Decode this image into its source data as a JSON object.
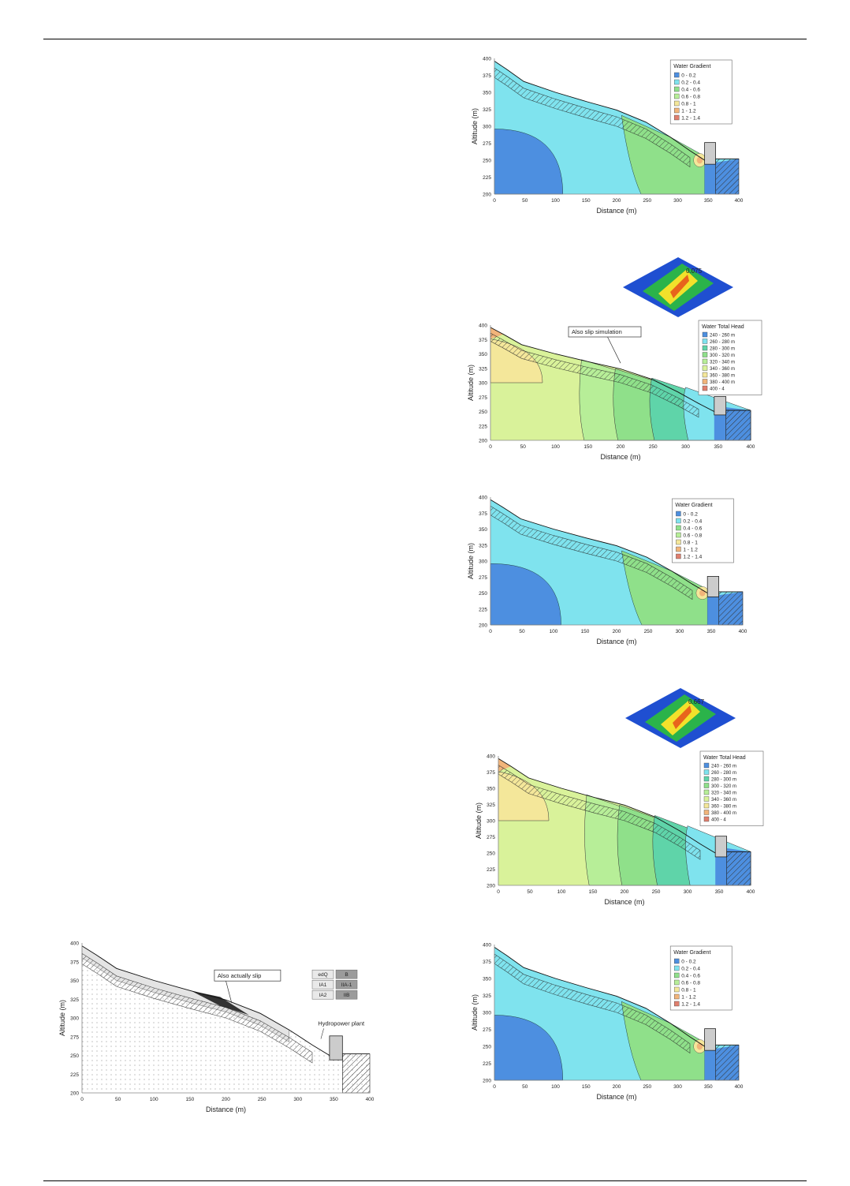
{
  "page": {
    "header_rule": true,
    "footer_rule": true
  },
  "colors": {
    "band_blue": "#4d8fe0",
    "band_cyan": "#7fe3ee",
    "band_green": "#8fe08a",
    "band_lightgreen": "#b7ee98",
    "band_yellowgreen": "#d9f29a",
    "band_yellow": "#f4e79a",
    "band_orange": "#f1b47a",
    "band_red": "#e07f6e",
    "soil_grey": "#9b9b9b"
  },
  "gradient_legend": {
    "title": "Water Gradient",
    "items": [
      "0 - 0.2",
      "0.2 - 0.4",
      "0.4 - 0.6",
      "0.6 - 0.8",
      "0.8 - 1",
      "1 - 1.2",
      "1.2 - 1.4"
    ]
  },
  "head_legend": {
    "title": "Water Total Head",
    "items": [
      "240 - 260 m",
      "260 - 280 m",
      "280 - 300 m",
      "300 - 320 m",
      "320 - 340 m",
      "340 - 360 m",
      "360 - 380 m",
      "380 - 400 m",
      "400 - 4"
    ]
  },
  "fig1": {
    "ylabel": "Altitude (m)",
    "xlabel": "Distance (m)",
    "yticks": [
      "400",
      "375",
      "350",
      "325",
      "300",
      "275",
      "250",
      "225",
      "200"
    ],
    "xticks": [
      "0",
      "50",
      "100",
      "150",
      "200",
      "250",
      "300",
      "350",
      "400"
    ]
  },
  "fig2": {
    "ylabel": "Altitude (m)",
    "xlabel": "Distance (m)",
    "callout": "Also slip simulation",
    "inset_value": "0.075",
    "yticks": [
      "400",
      "375",
      "350",
      "325",
      "300",
      "275",
      "250",
      "225",
      "200"
    ],
    "xticks": [
      "0",
      "50",
      "100",
      "150",
      "200",
      "250",
      "300",
      "350",
      "400"
    ]
  },
  "fig3": {
    "ylabel": "Altitude (m)",
    "xlabel": "Distance (m)",
    "yticks": [
      "400",
      "375",
      "350",
      "325",
      "300",
      "275",
      "250",
      "225",
      "200"
    ],
    "xticks": [
      "0",
      "50",
      "100",
      "150",
      "200",
      "250",
      "300",
      "350",
      "400"
    ]
  },
  "fig4": {
    "ylabel": "Altitude (m)",
    "xlabel": "Distance (m)",
    "inset_value": "0.667",
    "yticks": [
      "400",
      "375",
      "350",
      "325",
      "300",
      "275",
      "250",
      "225",
      "200"
    ],
    "xticks": [
      "0",
      "50",
      "100",
      "150",
      "200",
      "250",
      "300",
      "350",
      "400"
    ]
  },
  "fig5": {
    "ylabel": "Altitude (m)",
    "xlabel": "Distance (m)",
    "yticks": [
      "400",
      "375",
      "350",
      "325",
      "300",
      "275",
      "250",
      "225",
      "200"
    ],
    "xticks": [
      "0",
      "50",
      "100",
      "150",
      "200",
      "250",
      "300",
      "350",
      "400"
    ]
  },
  "fig6": {
    "ylabel": "Altitude (m)",
    "xlabel": "Distance (m)",
    "callout": "Also actually slip",
    "plant_label": "Hydropower plant",
    "soil_legend": [
      "edQ",
      "B",
      "IA1",
      "IIA-1",
      "IA2",
      "IIB"
    ],
    "yticks": [
      "400",
      "375",
      "350",
      "325",
      "300",
      "275",
      "250",
      "225",
      "200"
    ],
    "xticks": [
      "0",
      "50",
      "100",
      "150",
      "200",
      "250",
      "300",
      "350",
      "400"
    ]
  }
}
